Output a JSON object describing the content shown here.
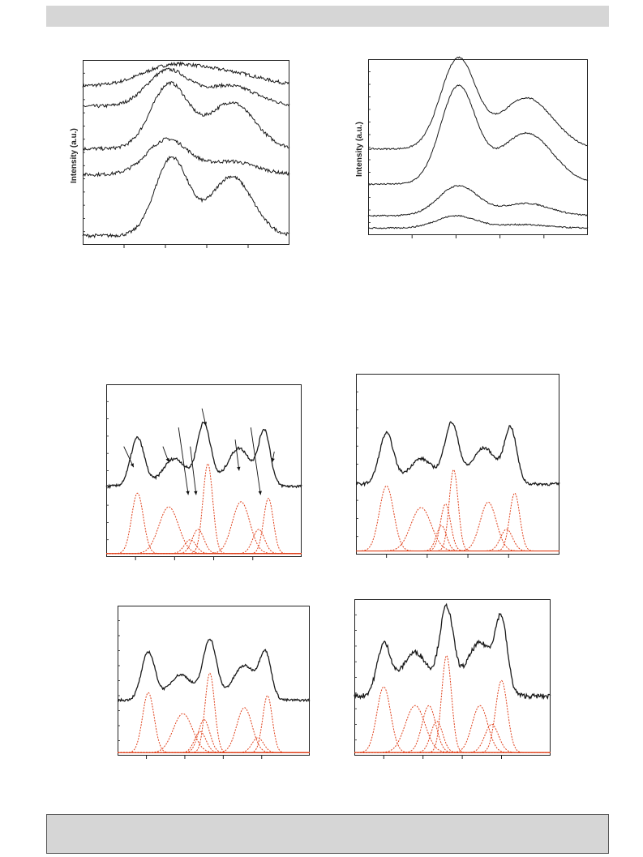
{
  "colors": {
    "band": "#d6d6d6",
    "trace": "#1a1a1a",
    "fit": "#e0401a"
  },
  "chart_data": [
    {
      "id": "top-left",
      "type": "line",
      "ylabel": "Intensity (a.u.)",
      "xlim": [
        0,
        1
      ],
      "ylim": [
        0,
        1
      ],
      "grid": false,
      "series": [
        {
          "baseline": 0.86,
          "peaks": [
            [
              0.42,
              0.1,
              0.14
            ],
            [
              0.7,
              0.07,
              0.16
            ]
          ]
        },
        {
          "baseline": 0.75,
          "peaks": [
            [
              0.41,
              0.19,
              0.1
            ],
            [
              0.71,
              0.11,
              0.13
            ]
          ]
        },
        {
          "baseline": 0.52,
          "peaks": [
            [
              0.42,
              0.35,
              0.09
            ],
            [
              0.72,
              0.25,
              0.11
            ]
          ]
        },
        {
          "baseline": 0.38,
          "peaks": [
            [
              0.41,
              0.19,
              0.1
            ],
            [
              0.72,
              0.07,
              0.12
            ]
          ]
        },
        {
          "baseline": 0.05,
          "peaks": [
            [
              0.43,
              0.42,
              0.08
            ],
            [
              0.72,
              0.32,
              0.1
            ]
          ]
        }
      ]
    },
    {
      "id": "top-right",
      "type": "line",
      "ylabel": "Intensity (a.u.)",
      "xlim": [
        0,
        1
      ],
      "ylim": [
        0,
        1
      ],
      "grid": false,
      "series": [
        {
          "baseline": 0.49,
          "peaks": [
            [
              0.41,
              0.51,
              0.08
            ],
            [
              0.72,
              0.29,
              0.12
            ]
          ]
        },
        {
          "baseline": 0.29,
          "peaks": [
            [
              0.41,
              0.55,
              0.08
            ],
            [
              0.72,
              0.29,
              0.12
            ]
          ]
        },
        {
          "baseline": 0.11,
          "peaks": [
            [
              0.41,
              0.17,
              0.09
            ],
            [
              0.72,
              0.07,
              0.11
            ]
          ]
        },
        {
          "baseline": 0.04,
          "peaks": [
            [
              0.4,
              0.07,
              0.09
            ],
            [
              0.7,
              0.02,
              0.11
            ]
          ]
        }
      ]
    },
    {
      "id": "mid-left",
      "type": "line",
      "xlim": [
        0,
        1
      ],
      "ylim": [
        0,
        1
      ],
      "grid": false,
      "annotations": "arrows",
      "trace": {
        "baseline": 0.41,
        "peaks": [
          [
            0.16,
            0.28,
            0.035
          ],
          [
            0.35,
            0.16,
            0.06
          ],
          [
            0.5,
            0.36,
            0.035
          ],
          [
            0.68,
            0.22,
            0.06
          ],
          [
            0.81,
            0.31,
            0.03
          ]
        ]
      },
      "components": [
        [
          0.16,
          0.35,
          0.03
        ],
        [
          0.32,
          0.27,
          0.05
        ],
        [
          0.43,
          0.08,
          0.03
        ],
        [
          0.47,
          0.14,
          0.03
        ],
        [
          0.52,
          0.52,
          0.025
        ],
        [
          0.69,
          0.3,
          0.045
        ],
        [
          0.78,
          0.14,
          0.03
        ],
        [
          0.83,
          0.32,
          0.025
        ]
      ],
      "arrows": [
        [
          0.09,
          0.64,
          0.14,
          0.52
        ],
        [
          0.29,
          0.64,
          0.32,
          0.55
        ],
        [
          0.37,
          0.75,
          0.42,
          0.36
        ],
        [
          0.43,
          0.64,
          0.46,
          0.36
        ],
        [
          0.49,
          0.86,
          0.51,
          0.76
        ],
        [
          0.66,
          0.68,
          0.68,
          0.5
        ],
        [
          0.74,
          0.75,
          0.79,
          0.36
        ],
        [
          0.86,
          0.61,
          0.85,
          0.55
        ]
      ]
    },
    {
      "id": "mid-right",
      "type": "line",
      "xlim": [
        0,
        1
      ],
      "ylim": [
        0,
        1
      ],
      "grid": false,
      "trace": {
        "baseline": 0.39,
        "peaks": [
          [
            0.15,
            0.28,
            0.035
          ],
          [
            0.32,
            0.14,
            0.06
          ],
          [
            0.47,
            0.33,
            0.035
          ],
          [
            0.63,
            0.2,
            0.06
          ],
          [
            0.76,
            0.3,
            0.03
          ]
        ]
      },
      "components": [
        [
          0.15,
          0.36,
          0.035
        ],
        [
          0.32,
          0.24,
          0.05
        ],
        [
          0.42,
          0.14,
          0.025
        ],
        [
          0.44,
          0.26,
          0.025
        ],
        [
          0.48,
          0.45,
          0.022
        ],
        [
          0.65,
          0.27,
          0.04
        ],
        [
          0.74,
          0.12,
          0.03
        ],
        [
          0.78,
          0.32,
          0.025
        ]
      ]
    },
    {
      "id": "bottom-left",
      "type": "line",
      "xlim": [
        0,
        1
      ],
      "ylim": [
        0,
        1
      ],
      "grid": false,
      "trace": {
        "baseline": 0.37,
        "peaks": [
          [
            0.16,
            0.32,
            0.035
          ],
          [
            0.33,
            0.17,
            0.06
          ],
          [
            0.48,
            0.4,
            0.035
          ],
          [
            0.66,
            0.23,
            0.06
          ],
          [
            0.77,
            0.29,
            0.03
          ]
        ]
      },
      "components": [
        [
          0.16,
          0.4,
          0.03
        ],
        [
          0.34,
          0.26,
          0.05
        ],
        [
          0.43,
          0.14,
          0.03
        ],
        [
          0.45,
          0.22,
          0.03
        ],
        [
          0.48,
          0.53,
          0.025
        ],
        [
          0.66,
          0.3,
          0.04
        ],
        [
          0.73,
          0.1,
          0.03
        ],
        [
          0.78,
          0.38,
          0.025
        ]
      ]
    },
    {
      "id": "bottom-right",
      "type": "line",
      "xlim": [
        0,
        1
      ],
      "ylim": [
        0,
        1
      ],
      "grid": false,
      "trace": {
        "baseline": 0.38,
        "peaks": [
          [
            0.15,
            0.32,
            0.035
          ],
          [
            0.31,
            0.28,
            0.07
          ],
          [
            0.47,
            0.54,
            0.035
          ],
          [
            0.64,
            0.34,
            0.07
          ],
          [
            0.75,
            0.42,
            0.03
          ]
        ]
      },
      "components": [
        [
          0.15,
          0.42,
          0.035
        ],
        [
          0.31,
          0.3,
          0.05
        ],
        [
          0.38,
          0.3,
          0.035
        ],
        [
          0.42,
          0.2,
          0.03
        ],
        [
          0.47,
          0.62,
          0.025
        ],
        [
          0.64,
          0.3,
          0.04
        ],
        [
          0.7,
          0.18,
          0.035
        ],
        [
          0.75,
          0.46,
          0.03
        ]
      ]
    }
  ]
}
